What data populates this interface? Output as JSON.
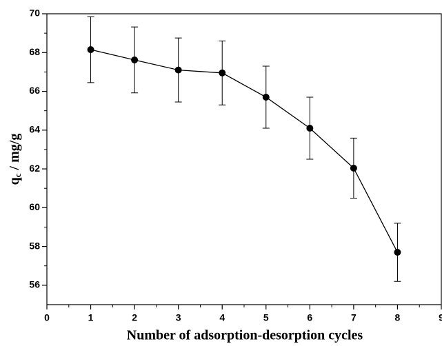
{
  "chart_data": {
    "type": "line",
    "xlabel": "Number of adsorption-desorption cycles",
    "ylabel": [
      "q",
      "c",
      " / mg/g"
    ],
    "x": [
      1,
      2,
      3,
      4,
      5,
      6,
      7,
      8
    ],
    "series": [
      {
        "color": "#000000",
        "values": [
          68.15,
          67.62,
          67.1,
          66.95,
          65.7,
          64.1,
          62.04,
          57.7
        ],
        "errors": [
          1.7,
          1.7,
          1.65,
          1.65,
          1.6,
          1.6,
          1.55,
          1.5
        ]
      }
    ],
    "xlim": [
      0,
      9
    ],
    "xticks": [
      0,
      1,
      2,
      3,
      4,
      5,
      6,
      7,
      8,
      9
    ],
    "ylim": [
      55,
      70
    ],
    "yticks": [
      56,
      58,
      60,
      62,
      64,
      66,
      68,
      70
    ]
  }
}
